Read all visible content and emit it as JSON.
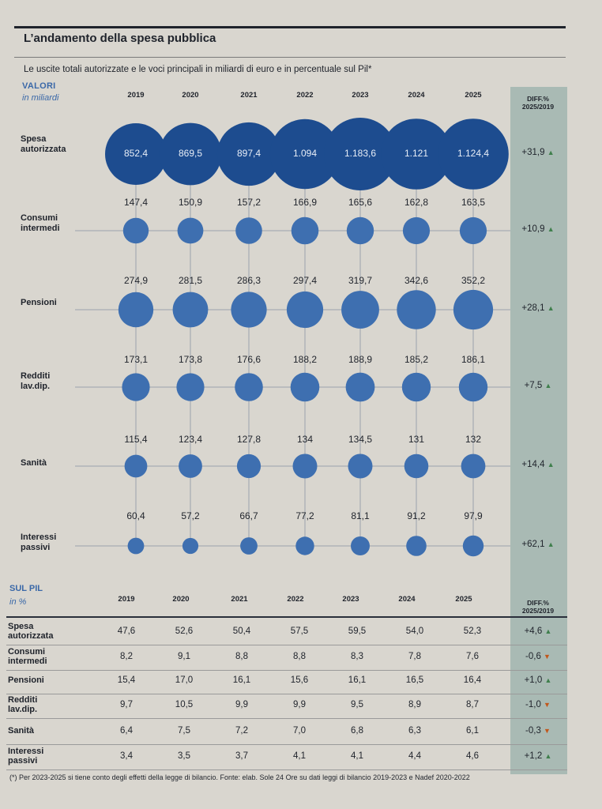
{
  "title": "L’andamento della spesa pubblica",
  "subtitle": "Le uscite totali autorizzate e le voci principali in miliardi di euro e in percentuale sul Pil*",
  "valori_label": "VALORI",
  "valori_unit": "in miliardi",
  "diff_header_1": "DIFF.%",
  "diff_header_2": "2025/2019",
  "pil_label": "SUL PIL",
  "pil_unit": "in %",
  "colors": {
    "bubble": "#3e6fb0",
    "bubble_dark": "#1d4c8f",
    "diff_band": "#a9bab4",
    "up": "#3f7f4c",
    "down": "#c2571b"
  },
  "chart_data": [
    {
      "type": "bubble",
      "title": "L’andamento della spesa pubblica",
      "categories": [
        "2019",
        "2020",
        "2021",
        "2022",
        "2023",
        "2024",
        "2025"
      ],
      "series": [
        {
          "name": "Spesa autorizzata",
          "label_lines": [
            "Spesa",
            "autorizzata"
          ],
          "values": [
            "852,4",
            "869,5",
            "897,4",
            "1.094",
            "1.183,6",
            "1.121",
            "1.124,4"
          ],
          "numeric": [
            852.4,
            869.5,
            897.4,
            1094,
            1183.6,
            1121,
            1124.4
          ],
          "diff": "+31,9",
          "trend": "up"
        },
        {
          "name": "Consumi intermedi",
          "label_lines": [
            "Consumi",
            "intermedi"
          ],
          "values": [
            "147,4",
            "150,9",
            "157,2",
            "166,9",
            "165,6",
            "162,8",
            "163,5"
          ],
          "numeric": [
            147.4,
            150.9,
            157.2,
            166.9,
            165.6,
            162.8,
            163.5
          ],
          "diff": "+10,9",
          "trend": "up"
        },
        {
          "name": "Pensioni",
          "label_lines": [
            "Pensioni"
          ],
          "values": [
            "274,9",
            "281,5",
            "286,3",
            "297,4",
            "319,7",
            "342,6",
            "352,2"
          ],
          "numeric": [
            274.9,
            281.5,
            286.3,
            297.4,
            319.7,
            342.6,
            352.2
          ],
          "diff": "+28,1",
          "trend": "up"
        },
        {
          "name": "Redditi lav.dip.",
          "label_lines": [
            "Redditi",
            "lav.dip."
          ],
          "values": [
            "173,1",
            "173,8",
            "176,6",
            "188,2",
            "188,9",
            "185,2",
            "186,1"
          ],
          "numeric": [
            173.1,
            173.8,
            176.6,
            188.2,
            188.9,
            185.2,
            186.1
          ],
          "diff": "+7,5",
          "trend": "up"
        },
        {
          "name": "Sanità",
          "label_lines": [
            "Sanità"
          ],
          "values": [
            "115,4",
            "123,4",
            "127,8",
            "134",
            "134,5",
            "131",
            "132"
          ],
          "numeric": [
            115.4,
            123.4,
            127.8,
            134,
            134.5,
            131,
            132
          ],
          "diff": "+14,4",
          "trend": "up"
        },
        {
          "name": "Interessi passivi",
          "label_lines": [
            "Interessi",
            "passivi"
          ],
          "values": [
            "60,4",
            "57,2",
            "66,7",
            "77,2",
            "81,1",
            "91,2",
            "97,9"
          ],
          "numeric": [
            60.4,
            57.2,
            66.7,
            77.2,
            81.1,
            91.2,
            97.9
          ],
          "diff": "+62,1",
          "trend": "up"
        }
      ]
    },
    {
      "type": "table",
      "categories": [
        "2019",
        "2020",
        "2021",
        "2022",
        "2023",
        "2024",
        "2025"
      ],
      "rows": [
        {
          "name": "Spesa autorizzata",
          "label_lines": [
            "Spesa",
            "autorizzata"
          ],
          "values": [
            "47,6",
            "52,6",
            "50,4",
            "57,5",
            "59,5",
            "54,0",
            "52,3"
          ],
          "diff": "+4,6",
          "trend": "up"
        },
        {
          "name": "Consumi intermedi",
          "label_lines": [
            "Consumi",
            "intermedi"
          ],
          "values": [
            "8,2",
            "9,1",
            "8,8",
            "8,8",
            "8,3",
            "7,8",
            "7,6"
          ],
          "diff": "-0,6",
          "trend": "down"
        },
        {
          "name": "Pensioni",
          "label_lines": [
            "Pensioni"
          ],
          "values": [
            "15,4",
            "17,0",
            "16,1",
            "15,6",
            "16,1",
            "16,5",
            "16,4"
          ],
          "diff": "+1,0",
          "trend": "up"
        },
        {
          "name": "Redditi lav.dip.",
          "label_lines": [
            "Redditi",
            "lav.dip."
          ],
          "values": [
            "9,7",
            "10,5",
            "9,9",
            "9,9",
            "9,5",
            "8,9",
            "8,7"
          ],
          "diff": "-1,0",
          "trend": "down"
        },
        {
          "name": "Sanità",
          "label_lines": [
            "Sanità"
          ],
          "values": [
            "6,4",
            "7,5",
            "7,2",
            "7,0",
            "6,8",
            "6,3",
            "6,1"
          ],
          "diff": "-0,3",
          "trend": "down"
        },
        {
          "name": "Interessi passivi",
          "label_lines": [
            "Interessi",
            "passivi"
          ],
          "values": [
            "3,4",
            "3,5",
            "3,7",
            "4,1",
            "4,1",
            "4,4",
            "4,6"
          ],
          "diff": "+1,2",
          "trend": "up"
        }
      ]
    }
  ],
  "footnote": "(*) Per 2023-2025 si tiene conto degli effetti della legge di bilancio. Fonte: elab. Sole 24 Ore su dati leggi di bilancio 2019-2023 e Nadef 2020-2022"
}
